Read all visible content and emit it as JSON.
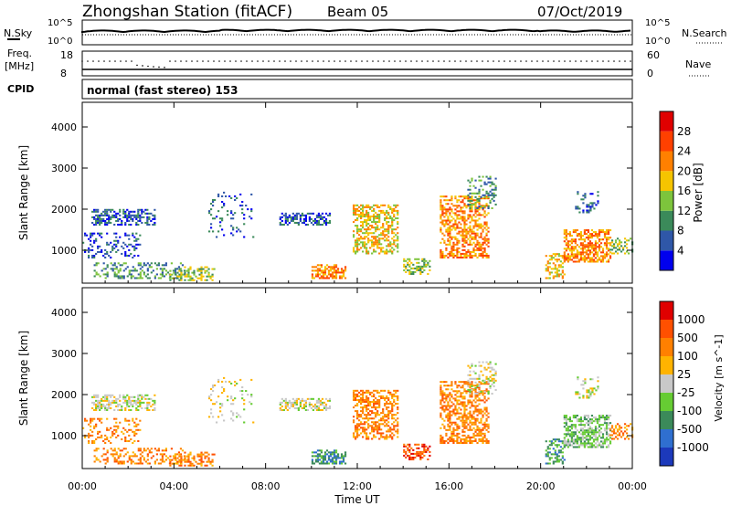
{
  "header": {
    "station": "Zhongshan Station (fitACF)",
    "beam": "Beam 05",
    "date": "07/Oct/2019"
  },
  "sky_panel": {
    "left_label": "N.Sky",
    "left_ticks": [
      "10^5",
      "10^0"
    ],
    "right_ticks": [
      "10^5",
      "10^0"
    ],
    "right_label": "N.Search"
  },
  "freq_panel": {
    "label_line1": "Freq.",
    "label_line2": "[MHz]",
    "left_ticks": [
      "18",
      "8"
    ],
    "right_ticks": [
      "60",
      "0"
    ],
    "right_label": "Nave"
  },
  "cpid_panel": {
    "label": "CPID",
    "text": "normal (fast stereo) 153"
  },
  "colors": {
    "power": [
      "#0000ee",
      "#2f57a8",
      "#3b8a5a",
      "#7dc43c",
      "#f5c400",
      "#ff8000",
      "#ff4000",
      "#e00000"
    ],
    "velocity": [
      "#1c39bb",
      "#2f6fd0",
      "#3b8a5a",
      "#66cc33",
      "#c8c8c8",
      "#ffb300",
      "#ff8000",
      "#ff5000",
      "#e00000"
    ]
  },
  "chart_data": [
    {
      "type": "heatmap",
      "ylabel": "Slant Range [km]",
      "y_ticks": [
        "4000",
        "3000",
        "2000",
        "1000"
      ],
      "y_tick_values": [
        4000,
        3000,
        2000,
        1000
      ],
      "ylim": [
        200,
        4600
      ],
      "xlim_hours": [
        0,
        24
      ],
      "colorbar_label": "Power [dB]",
      "colorbar_ticks": [
        "28",
        "24",
        "20",
        "16",
        "12",
        "8",
        "4"
      ]
    },
    {
      "type": "heatmap",
      "ylabel": "Slant Range [km]",
      "y_ticks": [
        "4000",
        "3000",
        "2000",
        "1000"
      ],
      "y_tick_values": [
        4000,
        3000,
        2000,
        1000
      ],
      "ylim": [
        200,
        4600
      ],
      "xlim_hours": [
        0,
        24
      ],
      "x_tick_labels": [
        "00:00",
        "04:00",
        "08:00",
        "12:00",
        "16:00",
        "20:00",
        "00:00"
      ],
      "x_tick_hours": [
        0,
        4,
        8,
        12,
        16,
        20,
        24
      ],
      "xlabel": "Time UT",
      "colorbar_label": "Velocity [m s^-1]",
      "colorbar_ticks": [
        "1000",
        "500",
        "100",
        "25",
        "-25",
        "-100",
        "-500",
        "-1000"
      ]
    }
  ]
}
